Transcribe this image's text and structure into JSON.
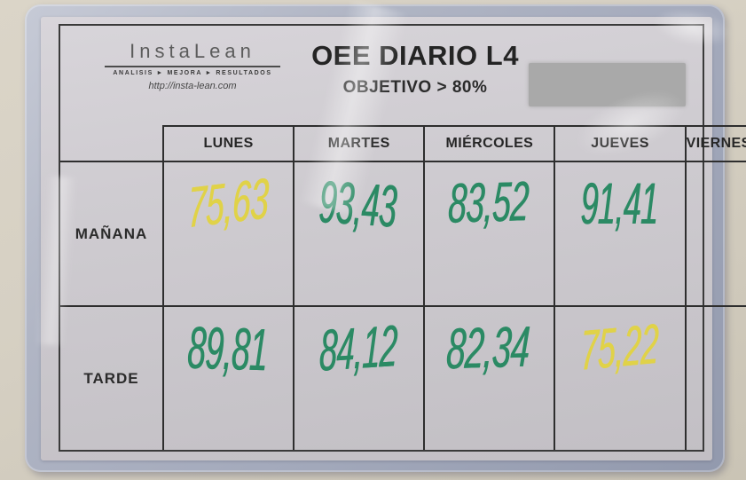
{
  "document": {
    "logo": {
      "name": "InstaLean",
      "tagline": "ANALISIS ► MEJORA ► RESULTADOS",
      "url": "http://insta-lean.com"
    },
    "title": "OEE DIARIO L4",
    "subtitle": "OBJETIVO > 80%"
  },
  "chart_data": {
    "type": "table",
    "title": "OEE DIARIO L4",
    "objective": "> 80%",
    "columns": [
      "LUNES",
      "MARTES",
      "MIÉRCOLES",
      "JUEVES",
      "VIERNES"
    ],
    "rows": [
      {
        "label": "MAÑANA",
        "values": [
          "75,63",
          "93,43",
          "83,52",
          "91,41",
          ""
        ]
      },
      {
        "label": "TARDE",
        "values": [
          "89,81",
          "84,12",
          "82,34",
          "75,22",
          ""
        ]
      }
    ],
    "value_colors": [
      [
        "yellow",
        "green",
        "green",
        "green",
        ""
      ],
      [
        "green",
        "green",
        "green",
        "yellow",
        ""
      ]
    ],
    "marker_colors": {
      "green": "#2b8a64",
      "yellow": "#e0d248"
    }
  }
}
